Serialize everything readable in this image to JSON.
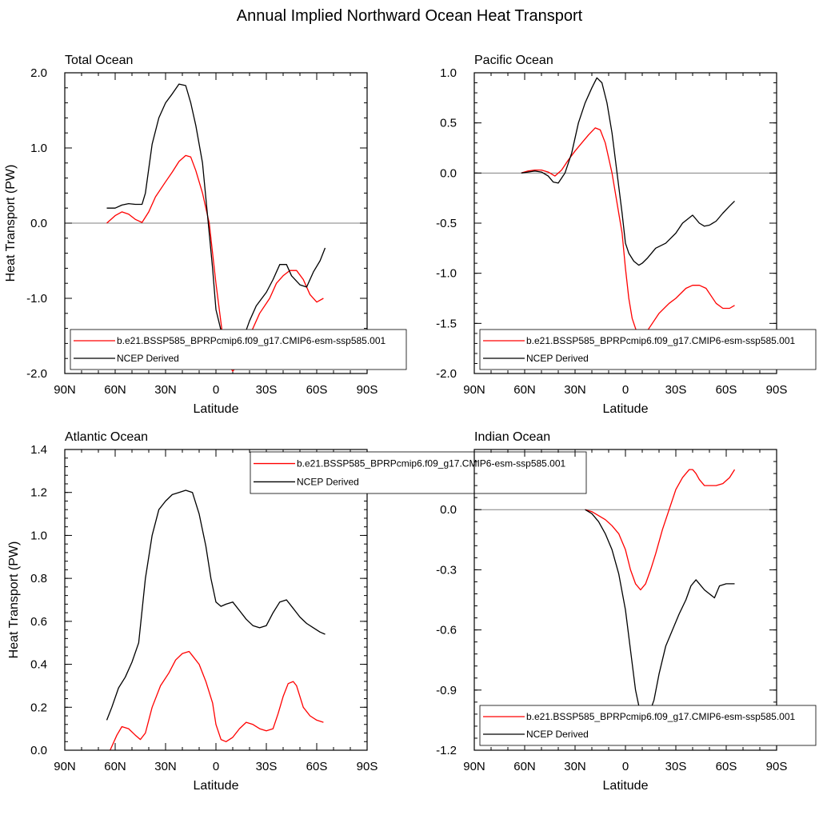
{
  "title": "Annual Implied Northward Ocean Heat Transport",
  "colors": {
    "model": "#ff0000",
    "ncep": "#000000",
    "zero_line": "#808080",
    "axis": "#000000"
  },
  "legend": {
    "model": "b.e21.BSSP585_BPRPcmip6.f09_g17.CMIP6-esm-ssp585.001",
    "ncep": "NCEP Derived"
  },
  "chart_data": [
    {
      "type": "line",
      "title": "Total Ocean",
      "xlabel": "Latitude",
      "ylabel": "Heat Transport (PW)",
      "xlim": [
        90,
        -90
      ],
      "ylim": [
        -2.0,
        2.0
      ],
      "x_ticks": [
        90,
        60,
        30,
        0,
        -30,
        -60,
        -90
      ],
      "x_tick_labels": [
        "90N",
        "60N",
        "30N",
        "0",
        "30S",
        "60S",
        "90S"
      ],
      "y_ticks": [
        -2.0,
        -1.0,
        0.0,
        1.0,
        2.0
      ],
      "y_tick_labels": [
        "-2.0",
        "-1.0",
        "0.0",
        "1.0",
        "2.0"
      ],
      "zero_line": true,
      "legend_position": "bottom",
      "series": [
        {
          "name": "b.e21.BSSP585_BPRPcmip6.f09_g17.CMIP6-esm-ssp585.001",
          "color": "#ff0000",
          "x": [
            65,
            60,
            56,
            52,
            48,
            44,
            40,
            36,
            30,
            26,
            22,
            18,
            15,
            12,
            8,
            4,
            0,
            -4,
            -8,
            -10,
            -14,
            -20,
            -26,
            -32,
            -36,
            -40,
            -44,
            -48,
            -52,
            -56,
            -60,
            -64
          ],
          "y": [
            0.0,
            0.1,
            0.15,
            0.12,
            0.05,
            0.01,
            0.15,
            0.35,
            0.55,
            0.68,
            0.82,
            0.9,
            0.88,
            0.7,
            0.4,
            0.0,
            -0.8,
            -1.5,
            -1.9,
            -1.97,
            -1.85,
            -1.5,
            -1.2,
            -1.0,
            -0.8,
            -0.7,
            -0.63,
            -0.63,
            -0.75,
            -0.95,
            -1.05,
            -1.0
          ]
        },
        {
          "name": "NCEP Derived",
          "color": "#000000",
          "x": [
            65,
            60,
            56,
            52,
            48,
            44,
            42,
            38,
            34,
            30,
            26,
            22,
            18,
            15,
            12,
            8,
            5,
            2,
            0,
            -4,
            -8,
            -12,
            -14,
            -16,
            -20,
            -24,
            -30,
            -34,
            -38,
            -42,
            -45,
            -50,
            -54,
            -58,
            -62,
            -65
          ],
          "y": [
            0.2,
            0.2,
            0.24,
            0.26,
            0.25,
            0.25,
            0.4,
            1.05,
            1.4,
            1.6,
            1.72,
            1.85,
            1.83,
            1.6,
            1.3,
            0.8,
            0.1,
            -0.6,
            -1.15,
            -1.52,
            -1.65,
            -1.67,
            -1.6,
            -1.55,
            -1.3,
            -1.1,
            -0.92,
            -0.75,
            -0.55,
            -0.55,
            -0.7,
            -0.82,
            -0.85,
            -0.65,
            -0.5,
            -0.33
          ]
        }
      ]
    },
    {
      "type": "line",
      "title": "Pacific Ocean",
      "xlabel": "Latitude",
      "ylabel": "",
      "xlim": [
        90,
        -90
      ],
      "ylim": [
        -2.0,
        1.0
      ],
      "x_ticks": [
        90,
        60,
        30,
        0,
        -30,
        -60,
        -90
      ],
      "x_tick_labels": [
        "90N",
        "60N",
        "30N",
        "0",
        "30S",
        "60S",
        "90S"
      ],
      "y_ticks": [
        -2.0,
        -1.5,
        -1.0,
        -0.5,
        0.0,
        0.5,
        1.0
      ],
      "y_tick_labels": [
        "-2.0",
        "-1.5",
        "-1.0",
        "-0.5",
        "0.0",
        "0.5",
        "1.0"
      ],
      "zero_line": true,
      "legend_position": "bottom",
      "series": [
        {
          "name": "b.e21.BSSP585_BPRPcmip6.f09_g17.CMIP6-esm-ssp585.001",
          "color": "#ff0000",
          "x": [
            62,
            58,
            54,
            50,
            46,
            42,
            38,
            34,
            30,
            26,
            22,
            18,
            15,
            12,
            8,
            5,
            2,
            0,
            -2,
            -4,
            -7,
            -10,
            -12,
            -16,
            -20,
            -26,
            -30,
            -36,
            -40,
            -44,
            -48,
            -54,
            -58,
            -62,
            -65
          ],
          "y": [
            0.0,
            0.02,
            0.03,
            0.03,
            0.01,
            -0.03,
            0.03,
            0.13,
            0.22,
            0.3,
            0.38,
            0.45,
            0.43,
            0.3,
            0.0,
            -0.3,
            -0.6,
            -0.95,
            -1.25,
            -1.45,
            -1.6,
            -1.63,
            -1.6,
            -1.5,
            -1.4,
            -1.3,
            -1.25,
            -1.15,
            -1.12,
            -1.12,
            -1.15,
            -1.3,
            -1.35,
            -1.35,
            -1.32
          ]
        },
        {
          "name": "NCEP Derived",
          "color": "#000000",
          "x": [
            62,
            58,
            54,
            50,
            46,
            43,
            40,
            36,
            32,
            28,
            24,
            20,
            17,
            14,
            11,
            8,
            5,
            2,
            0,
            -2,
            -5,
            -8,
            -10,
            -13,
            -18,
            -24,
            -30,
            -34,
            -40,
            -44,
            -47,
            -50,
            -54,
            -58,
            -62,
            -65
          ],
          "y": [
            0.0,
            0.01,
            0.02,
            0.01,
            -0.03,
            -0.09,
            -0.1,
            0.0,
            0.2,
            0.5,
            0.7,
            0.85,
            0.95,
            0.9,
            0.7,
            0.4,
            0.0,
            -0.4,
            -0.7,
            -0.8,
            -0.88,
            -0.92,
            -0.9,
            -0.85,
            -0.75,
            -0.7,
            -0.6,
            -0.5,
            -0.42,
            -0.5,
            -0.53,
            -0.52,
            -0.48,
            -0.4,
            -0.33,
            -0.28
          ]
        }
      ]
    },
    {
      "type": "line",
      "title": "Atlantic Ocean",
      "xlabel": "Latitude",
      "ylabel": "Heat Transport (PW)",
      "xlim": [
        90,
        -90
      ],
      "ylim": [
        0.0,
        1.4
      ],
      "x_ticks": [
        90,
        60,
        30,
        0,
        -30,
        -60,
        -90
      ],
      "x_tick_labels": [
        "90N",
        "60N",
        "30N",
        "0",
        "30S",
        "60S",
        "90S"
      ],
      "y_ticks": [
        0.0,
        0.2,
        0.4,
        0.6,
        0.8,
        1.0,
        1.2,
        1.4
      ],
      "y_tick_labels": [
        "0.0",
        "0.2",
        "0.4",
        "0.6",
        "0.8",
        "1.0",
        "1.2",
        "1.4"
      ],
      "zero_line": false,
      "legend_position": "top-right",
      "series": [
        {
          "name": "b.e21.BSSP585_BPRPcmip6.f09_g17.CMIP6-esm-ssp585.001",
          "color": "#ff0000",
          "x": [
            63,
            59,
            56,
            52,
            48,
            45,
            42,
            38,
            33,
            28,
            24,
            20,
            16,
            14,
            10,
            6,
            2,
            0,
            -3,
            -6,
            -10,
            -14,
            -18,
            -22,
            -26,
            -30,
            -34,
            -37,
            -40,
            -43,
            -46,
            -48,
            -52,
            -56,
            -60,
            -64
          ],
          "y": [
            0.0,
            0.07,
            0.11,
            0.1,
            0.07,
            0.05,
            0.08,
            0.2,
            0.3,
            0.36,
            0.42,
            0.45,
            0.46,
            0.44,
            0.4,
            0.32,
            0.22,
            0.12,
            0.05,
            0.04,
            0.06,
            0.1,
            0.13,
            0.12,
            0.1,
            0.09,
            0.1,
            0.17,
            0.25,
            0.31,
            0.32,
            0.3,
            0.2,
            0.16,
            0.14,
            0.13
          ]
        },
        {
          "name": "NCEP Derived",
          "color": "#000000",
          "x": [
            65,
            62,
            58,
            54,
            50,
            46,
            42,
            38,
            34,
            30,
            26,
            22,
            18,
            14,
            10,
            6,
            3,
            0,
            -3,
            -6,
            -10,
            -14,
            -18,
            -22,
            -26,
            -30,
            -34,
            -38,
            -42,
            -46,
            -50,
            -54,
            -58,
            -62,
            -65
          ],
          "y": [
            0.14,
            0.2,
            0.29,
            0.34,
            0.41,
            0.5,
            0.8,
            1.0,
            1.12,
            1.16,
            1.19,
            1.2,
            1.21,
            1.2,
            1.1,
            0.95,
            0.8,
            0.69,
            0.67,
            0.68,
            0.69,
            0.65,
            0.61,
            0.58,
            0.57,
            0.58,
            0.64,
            0.69,
            0.7,
            0.66,
            0.62,
            0.59,
            0.57,
            0.55,
            0.54
          ]
        }
      ]
    },
    {
      "type": "line",
      "title": "Indian Ocean",
      "xlabel": "Latitude",
      "ylabel": "",
      "xlim": [
        90,
        -90
      ],
      "ylim": [
        -1.2,
        0.3
      ],
      "x_ticks": [
        90,
        60,
        30,
        0,
        -30,
        -60,
        -90
      ],
      "x_tick_labels": [
        "90N",
        "60N",
        "30N",
        "0",
        "30S",
        "60S",
        "90S"
      ],
      "y_ticks": [
        -1.2,
        -0.9,
        -0.6,
        -0.3,
        0.0
      ],
      "y_tick_labels": [
        "-1.2",
        "-0.9",
        "-0.6",
        "-0.3",
        "0.0"
      ],
      "zero_line": true,
      "legend_position": "bottom",
      "series": [
        {
          "name": "b.e21.BSSP585_BPRPcmip6.f09_g17.CMIP6-esm-ssp585.001",
          "color": "#ff0000",
          "x": [
            24,
            20,
            16,
            12,
            8,
            4,
            0,
            -3,
            -6,
            -9,
            -12,
            -15,
            -18,
            -22,
            -26,
            -30,
            -34,
            -38,
            -40,
            -42,
            -44,
            -47,
            -50,
            -54,
            -58,
            -62,
            -65
          ],
          "y": [
            0.0,
            -0.01,
            -0.03,
            -0.05,
            -0.08,
            -0.12,
            -0.2,
            -0.3,
            -0.37,
            -0.4,
            -0.37,
            -0.3,
            -0.22,
            -0.1,
            0.0,
            0.1,
            0.16,
            0.2,
            0.2,
            0.18,
            0.15,
            0.12,
            0.12,
            0.12,
            0.13,
            0.16,
            0.2
          ]
        },
        {
          "name": "NCEP Derived",
          "color": "#000000",
          "x": [
            24,
            20,
            16,
            12,
            8,
            4,
            0,
            -3,
            -6,
            -9,
            -12,
            -14,
            -17,
            -20,
            -24,
            -28,
            -32,
            -36,
            -39,
            -42,
            -44,
            -47,
            -50,
            -53,
            -56,
            -60,
            -65
          ],
          "y": [
            0.0,
            -0.02,
            -0.06,
            -0.12,
            -0.2,
            -0.32,
            -0.5,
            -0.7,
            -0.9,
            -1.02,
            -1.05,
            -1.02,
            -0.95,
            -0.82,
            -0.68,
            -0.6,
            -0.52,
            -0.45,
            -0.38,
            -0.35,
            -0.37,
            -0.4,
            -0.42,
            -0.44,
            -0.38,
            -0.37,
            -0.37
          ]
        }
      ]
    }
  ]
}
